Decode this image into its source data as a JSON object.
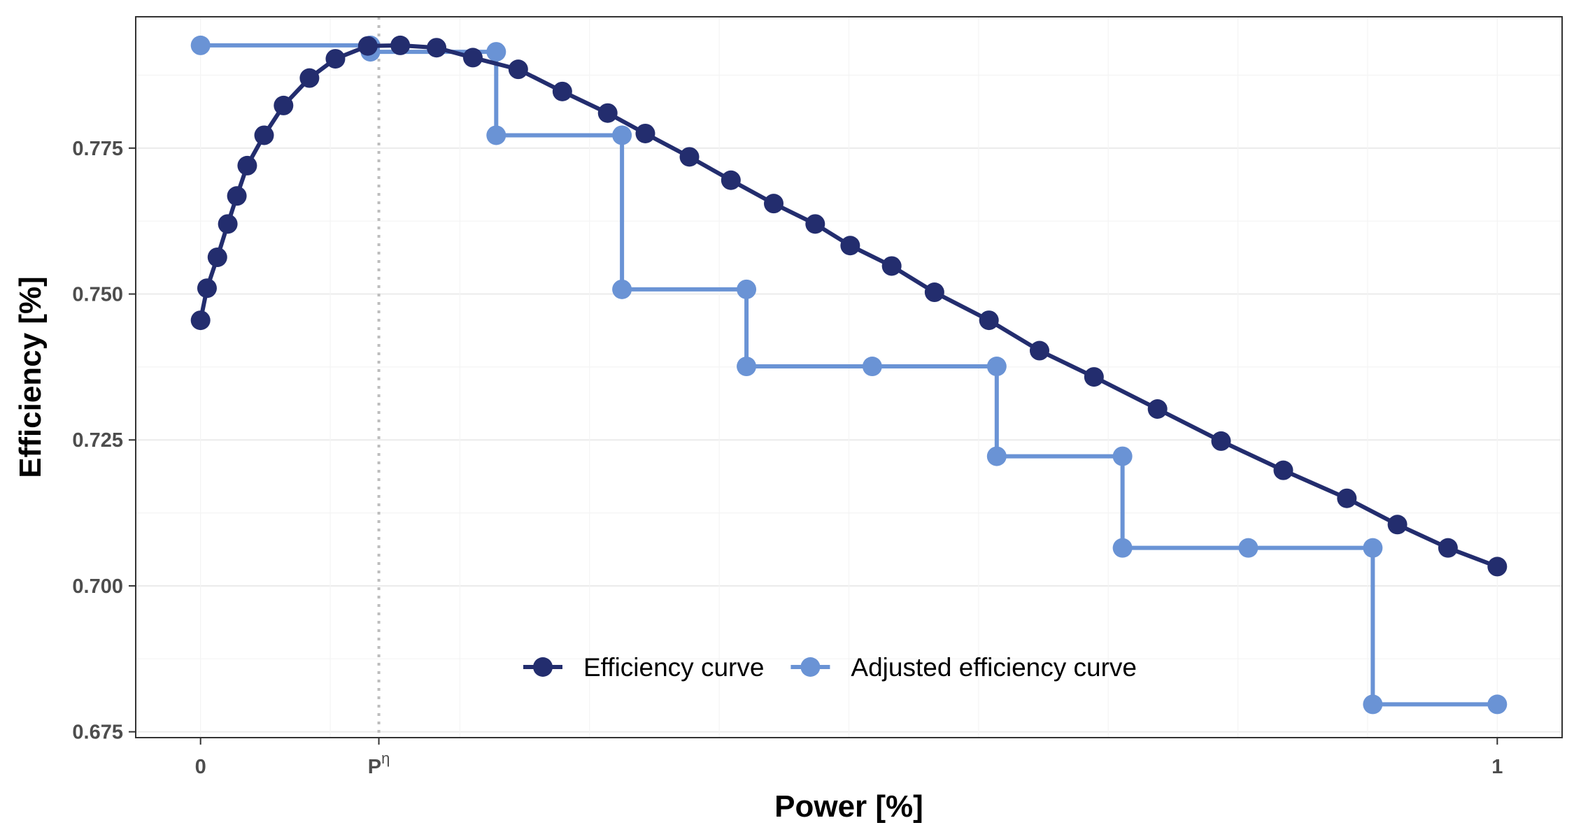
{
  "chart_data": {
    "type": "line",
    "xlabel": "Power [%]",
    "ylabel": "Efficiency [%]",
    "xlim": [
      -0.05,
      1.05
    ],
    "ylim": [
      0.674,
      0.7975
    ],
    "grid": true,
    "legend_position": "bottom-center",
    "x_ticks": [
      {
        "value": 0,
        "label": "0"
      },
      {
        "value": 0.1375,
        "label": "P",
        "superscript": "η"
      },
      {
        "value": 1,
        "label": "1"
      }
    ],
    "y_ticks": [
      {
        "value": 0.675,
        "label": "0.675"
      },
      {
        "value": 0.7,
        "label": "0.700"
      },
      {
        "value": 0.725,
        "label": "0.725"
      },
      {
        "value": 0.75,
        "label": "0.750"
      },
      {
        "value": 0.775,
        "label": "0.775"
      }
    ],
    "reference_line": {
      "axis": "x",
      "value": 0.1375,
      "style": "dotted",
      "color": "#bdbdbd"
    },
    "series": [
      {
        "name": "Efficiency curve",
        "color": "#232d6e",
        "step": false,
        "points": [
          [
            0.0,
            0.7455
          ],
          [
            0.005,
            0.751
          ],
          [
            0.013,
            0.7563
          ],
          [
            0.021,
            0.762
          ],
          [
            0.028,
            0.7668
          ],
          [
            0.036,
            0.772
          ],
          [
            0.049,
            0.7772
          ],
          [
            0.064,
            0.7823
          ],
          [
            0.084,
            0.787
          ],
          [
            0.104,
            0.7903
          ],
          [
            0.129,
            0.7925
          ],
          [
            0.154,
            0.7926
          ],
          [
            0.182,
            0.7922
          ],
          [
            0.21,
            0.7905
          ],
          [
            0.245,
            0.7885
          ],
          [
            0.279,
            0.7847
          ],
          [
            0.314,
            0.781
          ],
          [
            0.343,
            0.7775
          ],
          [
            0.377,
            0.7735
          ],
          [
            0.409,
            0.7695
          ],
          [
            0.442,
            0.7655
          ],
          [
            0.474,
            0.762
          ],
          [
            0.501,
            0.7583
          ],
          [
            0.533,
            0.7548
          ],
          [
            0.566,
            0.7503
          ],
          [
            0.608,
            0.7455
          ],
          [
            0.647,
            0.7403
          ],
          [
            0.689,
            0.7358
          ],
          [
            0.738,
            0.7303
          ],
          [
            0.787,
            0.7248
          ],
          [
            0.835,
            0.7198
          ],
          [
            0.884,
            0.715
          ],
          [
            0.923,
            0.7105
          ],
          [
            0.962,
            0.7065
          ],
          [
            1.0,
            0.7033
          ]
        ]
      },
      {
        "name": "Adjusted efficiency curve",
        "color": "#6a93d5",
        "step": true,
        "points": [
          [
            0.0,
            0.7926
          ],
          [
            0.131,
            0.7926
          ],
          [
            0.131,
            0.7915
          ],
          [
            0.228,
            0.7915
          ],
          [
            0.228,
            0.7772
          ],
          [
            0.325,
            0.7772
          ],
          [
            0.325,
            0.7508
          ],
          [
            0.421,
            0.7508
          ],
          [
            0.421,
            0.7376
          ],
          [
            0.518,
            0.7376
          ],
          [
            0.614,
            0.7376
          ],
          [
            0.614,
            0.7222
          ],
          [
            0.711,
            0.7222
          ],
          [
            0.711,
            0.7065
          ],
          [
            0.808,
            0.7065
          ],
          [
            0.904,
            0.7065
          ],
          [
            0.904,
            0.6797
          ],
          [
            1.0,
            0.6797
          ]
        ]
      }
    ]
  }
}
